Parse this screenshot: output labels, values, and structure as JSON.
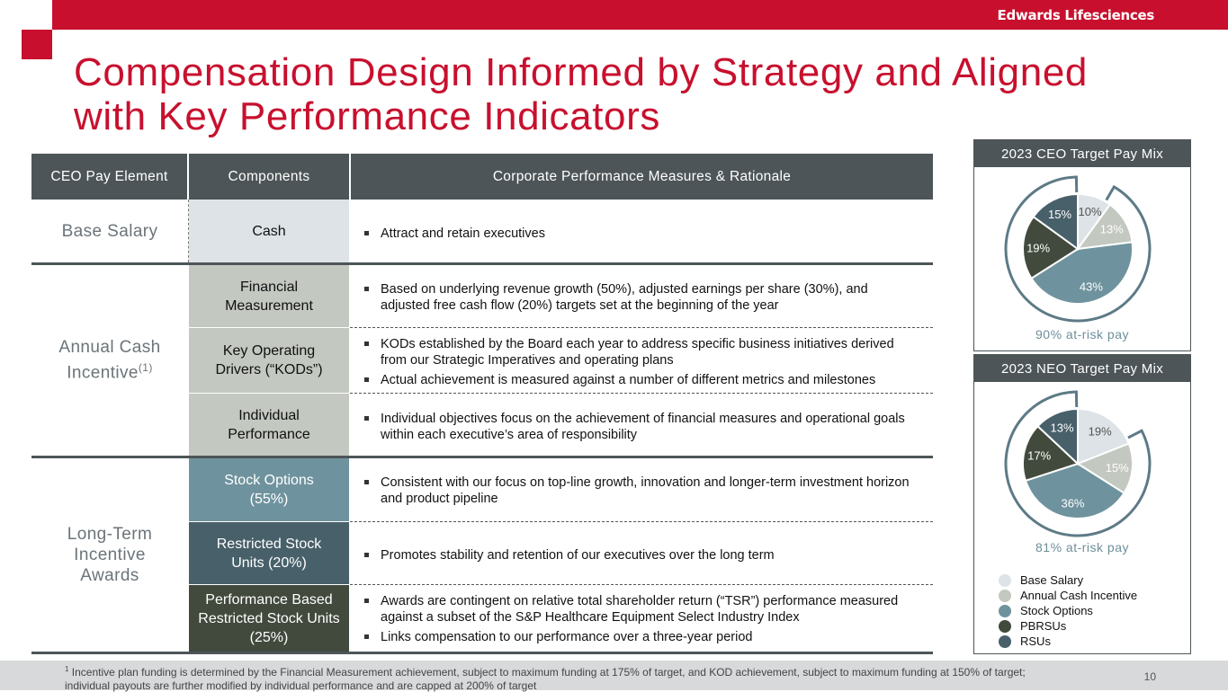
{
  "brand": "Edwards Lifesciences",
  "title_line1": "Compensation Design Informed by Strategy and Aligned",
  "title_line2": "with Key Performance Indicators",
  "table": {
    "headers": [
      "CEO Pay Element",
      "Components",
      "Corporate Performance Measures & Rationale"
    ],
    "elements": {
      "base": "Base Salary",
      "aci": "Annual Cash Incentive",
      "aci_sup": "(1)",
      "lti": "Long-Term Incentive Awards"
    },
    "rows": [
      {
        "component": "Cash",
        "bullets": [
          "Attract and retain executives"
        ]
      },
      {
        "component": "Financial Measurement",
        "bullets": [
          "Based on underlying revenue growth (50%), adjusted earnings per share (30%), and adjusted free cash flow (20%) targets set at the beginning of the year"
        ]
      },
      {
        "component": "Key Operating Drivers (“KODs”)",
        "bullets": [
          "KODs established by the Board each year to address specific business initiatives derived from our Strategic Imperatives and operating plans",
          "Actual achievement is measured against a number of different metrics and milestones"
        ]
      },
      {
        "component": "Individual Performance",
        "bullets": [
          "Individual objectives focus on the achievement of financial measures and operational goals within each executive’s area of responsibility"
        ]
      },
      {
        "component": "Stock Options (55%)",
        "bullets": [
          "Consistent with our focus on top-line growth, innovation and longer-term investment horizon and product pipeline"
        ]
      },
      {
        "component": "Restricted Stock Units (20%)",
        "bullets": [
          "Promotes stability and retention of our executives over the long term"
        ]
      },
      {
        "component": "Performance Based Restricted Stock Units (25%)",
        "bullets": [
          "Awards are contingent on relative total shareholder return (“TSR”) performance measured against a subset of the S&P Healthcare Equipment Select Industry Index",
          "Links compensation to our performance over a three-year period"
        ]
      }
    ]
  },
  "colors": {
    "brand_red": "#c8102e",
    "header_gray": "#4d5558",
    "base_salary": "#dde3e6",
    "annual_cash": "#c3c8c0",
    "stock_options": "#6f939e",
    "pbrsus": "#424a3d",
    "rsus": "#48606a"
  },
  "ceo_panel": {
    "title": "2023 CEO Target Pay Mix",
    "at_risk": "90% at-risk pay"
  },
  "neo_panel": {
    "title": "2023 NEO Target Pay Mix",
    "at_risk": "81% at-risk pay"
  },
  "chart_data": [
    {
      "type": "pie",
      "title": "2023 CEO Target Pay Mix",
      "categories": [
        "Base Salary",
        "Annual Cash Incentive",
        "Stock Options",
        "PBRSUs",
        "RSUs"
      ],
      "values": [
        10,
        13,
        43,
        19,
        15
      ],
      "labels": [
        "10%",
        "13%",
        "43%",
        "19%",
        "15%"
      ],
      "annotation": "90% at-risk pay"
    },
    {
      "type": "pie",
      "title": "2023 NEO Target Pay Mix",
      "categories": [
        "Base Salary",
        "Annual Cash Incentive",
        "Stock Options",
        "PBRSUs",
        "RSUs"
      ],
      "values": [
        19,
        15,
        36,
        17,
        13
      ],
      "labels": [
        "19%",
        "15%",
        "36%",
        "17%",
        "13%"
      ],
      "annotation": "81% at-risk pay"
    }
  ],
  "legend": [
    "Base Salary",
    "Annual Cash Incentive",
    "Stock Options",
    "PBRSUs",
    "RSUs"
  ],
  "footnote_sup": "1",
  "footnote": "Incentive plan funding is determined by the Financial Measurement achievement, subject to maximum funding at 175% of target, and KOD achievement, subject to maximum funding at 150% of target; individual payouts are further modified by individual performance and are capped at 200% of target",
  "page_number": "10"
}
